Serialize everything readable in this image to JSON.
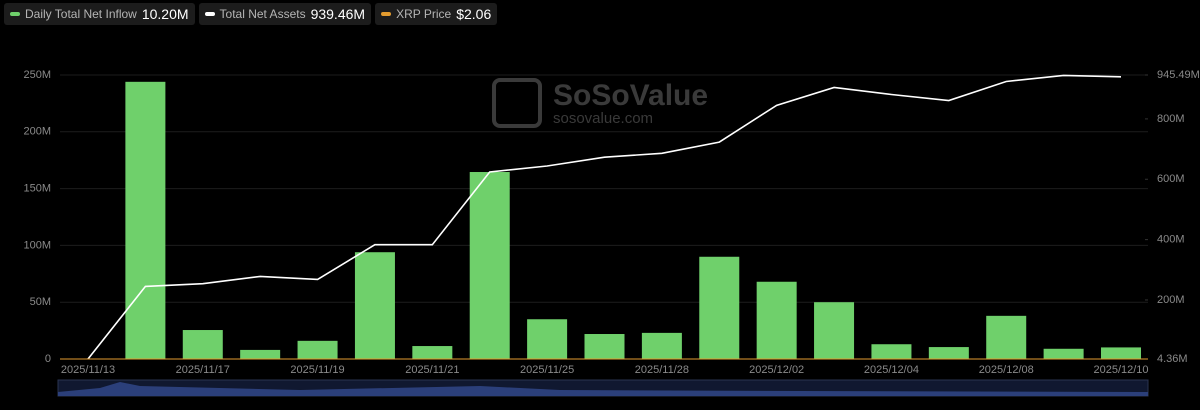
{
  "chart_data": {
    "type": "bar_line",
    "legend": [
      {
        "name": "Daily Total Net Inflow",
        "value": "10.20M",
        "color": "#6fd06b"
      },
      {
        "name": "Total Net Assets",
        "value": "939.46M",
        "color": "#ffffff"
      },
      {
        "name": "XRP Price",
        "value": "$2.06",
        "color": "#e39b2f"
      }
    ],
    "watermark": "SoSoValue",
    "watermark_url": "sosovalue.com",
    "categories": [
      "2025/11/13",
      null,
      "2025/11/17",
      null,
      "2025/11/19",
      null,
      "2025/11/21",
      null,
      "2025/11/25",
      null,
      "2025/11/28",
      null,
      "2025/12/02",
      null,
      "2025/12/04",
      null,
      "2025/12/08",
      null,
      "2025/12/10"
    ],
    "series": [
      {
        "type": "bar",
        "color": "#6fd06b",
        "values": [
          0,
          244,
          25.5,
          8,
          16,
          94,
          11.4,
          164.6,
          35,
          22,
          23,
          90,
          68,
          50,
          13,
          10.5,
          38,
          9,
          10.2
        ]
      },
      {
        "type": "line",
        "axis": "y2",
        "color": "#ffffff",
        "values": [
          4.36,
          245,
          254,
          278,
          268,
          383,
          383,
          624,
          644,
          673,
          686,
          723,
          845,
          904,
          881,
          861,
          924,
          944,
          939.46
        ]
      }
    ],
    "ylim": [
      0,
      250
    ],
    "yticks": [
      {
        "value": 0,
        "label": "0"
      },
      {
        "value": 50,
        "label": "50M"
      },
      {
        "value": 100,
        "label": "100M"
      },
      {
        "value": 150,
        "label": "150M"
      },
      {
        "value": 200,
        "label": "200M"
      },
      {
        "value": 250,
        "label": "250M"
      }
    ],
    "y2lim": [
      4.36,
      945.49
    ],
    "y2ticks": [
      {
        "value": 4.36,
        "label": "4.36M"
      },
      {
        "value": 200,
        "label": "200M"
      },
      {
        "value": 400,
        "label": "400M"
      },
      {
        "value": 600,
        "label": "600M"
      },
      {
        "value": 800,
        "label": "800M"
      },
      {
        "value": 945.49,
        "label": "945.49M"
      }
    ],
    "grid": true
  }
}
